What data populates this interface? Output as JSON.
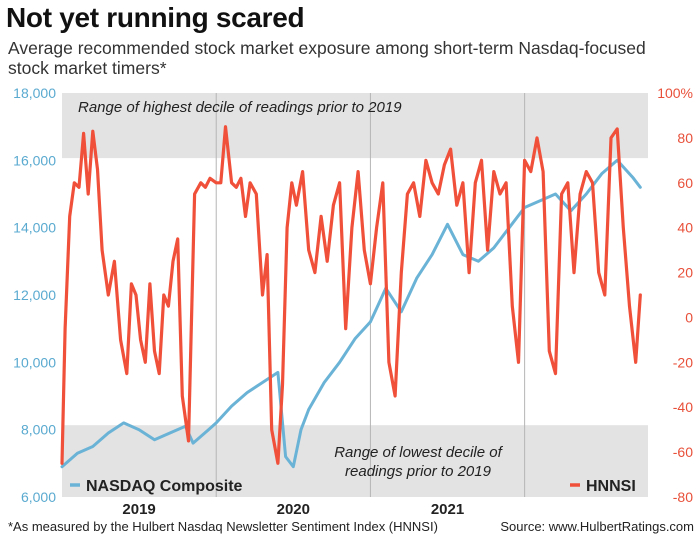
{
  "title": "Not yet running scared",
  "subtitle": "Average recommended stock market exposure among short-term Nasdaq-focused stock market timers*",
  "footnote": "*As measured by the Hulbert Nasdaq Newsletter Sentiment Index (HNNSI)",
  "source": "Source: www.HulbertRatings.com",
  "chart_data": {
    "type": "line",
    "x_range": [
      2018.0,
      2021.8
    ],
    "x_ticks": [
      {
        "label": "2019",
        "at": 2018.5
      },
      {
        "label": "2020",
        "at": 2019.5
      },
      {
        "label": "2021",
        "at": 2020.5
      }
    ],
    "year_dividers": [
      2019.0,
      2020.0,
      2021.0
    ],
    "left_axis": {
      "ylim": [
        6000,
        18000
      ],
      "ticks": [
        6000,
        8000,
        10000,
        12000,
        14000,
        16000,
        18000
      ],
      "tick_labels": [
        "6,000",
        "8,000",
        "10,000",
        "12,000",
        "14,000",
        "16,000",
        "18,000"
      ],
      "color": "#5aaad0"
    },
    "right_axis": {
      "ylim": [
        -80,
        100
      ],
      "ticks": [
        -80,
        -60,
        -40,
        -20,
        0,
        20,
        40,
        60,
        80,
        100
      ],
      "tick_labels": [
        "-80",
        "-60",
        "-40",
        "-20",
        "0",
        "20",
        "40",
        "60",
        "80",
        "100%"
      ],
      "color": "#e8503a"
    },
    "bands": [
      {
        "label": "Range of highest decile of readings prior to 2019",
        "axis": "right",
        "from": 71,
        "to": 100,
        "color": "#e3e3e3"
      },
      {
        "label_lines": [
          "Range of lowest decile of",
          "readings prior to 2019"
        ],
        "axis": "right",
        "from": -80,
        "to": -48,
        "color": "#e3e3e3"
      }
    ],
    "series": [
      {
        "name": "NASDAQ Composite",
        "axis": "left",
        "color": "#6bb3d6",
        "x": [
          2018.0,
          2018.1,
          2018.2,
          2018.3,
          2018.4,
          2018.5,
          2018.6,
          2018.7,
          2018.8,
          2018.85,
          2018.95,
          2019.0,
          2019.1,
          2019.2,
          2019.3,
          2019.4,
          2019.45,
          2019.5,
          2019.55,
          2019.6,
          2019.7,
          2019.8,
          2019.9,
          2020.0,
          2020.1,
          2020.2,
          2020.3,
          2020.4,
          2020.5,
          2020.6,
          2020.7,
          2020.8,
          2020.9,
          2021.0,
          2021.1,
          2021.2,
          2021.3,
          2021.4,
          2021.5,
          2021.6,
          2021.7,
          2021.75
        ],
        "values": [
          6900,
          7300,
          7500,
          7900,
          8200,
          8000,
          7700,
          7900,
          8100,
          7600,
          8000,
          8200,
          8700,
          9100,
          9400,
          9700,
          7200,
          6900,
          8000,
          8600,
          9400,
          10000,
          10700,
          11200,
          12200,
          11500,
          12500,
          13200,
          14100,
          13200,
          13000,
          13400,
          14000,
          14600,
          14800,
          15000,
          14500,
          15000,
          15600,
          16000,
          15500,
          15200
        ]
      },
      {
        "name": "HNNSI",
        "axis": "right",
        "color": "#f0503a",
        "x": [
          2018.0,
          2018.02,
          2018.05,
          2018.08,
          2018.11,
          2018.14,
          2018.17,
          2018.2,
          2018.23,
          2018.26,
          2018.3,
          2018.34,
          2018.38,
          2018.42,
          2018.45,
          2018.48,
          2018.51,
          2018.54,
          2018.57,
          2018.6,
          2018.63,
          2018.66,
          2018.69,
          2018.72,
          2018.75,
          2018.78,
          2018.82,
          2018.86,
          2018.9,
          2018.93,
          2018.96,
          2019.0,
          2019.03,
          2019.06,
          2019.1,
          2019.13,
          2019.16,
          2019.19,
          2019.22,
          2019.26,
          2019.3,
          2019.33,
          2019.36,
          2019.4,
          2019.43,
          2019.46,
          2019.49,
          2019.52,
          2019.56,
          2019.6,
          2019.64,
          2019.68,
          2019.72,
          2019.76,
          2019.8,
          2019.84,
          2019.88,
          2019.92,
          2019.96,
          2020.0,
          2020.04,
          2020.08,
          2020.12,
          2020.16,
          2020.2,
          2020.24,
          2020.28,
          2020.32,
          2020.36,
          2020.4,
          2020.44,
          2020.48,
          2020.52,
          2020.56,
          2020.6,
          2020.64,
          2020.68,
          2020.72,
          2020.76,
          2020.8,
          2020.84,
          2020.88,
          2020.92,
          2020.96,
          2021.0,
          2021.04,
          2021.08,
          2021.12,
          2021.16,
          2021.2,
          2021.24,
          2021.28,
          2021.32,
          2021.36,
          2021.4,
          2021.44,
          2021.48,
          2021.52,
          2021.56,
          2021.6,
          2021.64,
          2021.68,
          2021.72,
          2021.75
        ],
        "values": [
          -65,
          -5,
          45,
          60,
          58,
          82,
          55,
          83,
          66,
          30,
          10,
          25,
          -10,
          -25,
          15,
          10,
          -10,
          -20,
          15,
          -15,
          -25,
          10,
          5,
          25,
          35,
          -35,
          -55,
          55,
          60,
          58,
          62,
          60,
          60,
          85,
          60,
          58,
          62,
          45,
          60,
          55,
          10,
          28,
          -50,
          -65,
          -30,
          40,
          60,
          50,
          65,
          30,
          20,
          45,
          25,
          50,
          60,
          -5,
          40,
          65,
          30,
          15,
          40,
          60,
          -20,
          -35,
          20,
          55,
          60,
          45,
          70,
          60,
          55,
          68,
          75,
          50,
          60,
          20,
          60,
          70,
          30,
          65,
          55,
          60,
          5,
          -20,
          70,
          65,
          80,
          65,
          -15,
          -25,
          55,
          60,
          20,
          55,
          65,
          60,
          20,
          10,
          80,
          84,
          40,
          5,
          -20,
          10
        ]
      }
    ],
    "legend": [
      {
        "label": "NASDAQ Composite",
        "color": "#6bb3d6",
        "placement": "bottom-left"
      },
      {
        "label": "HNNSI",
        "color": "#f0503a",
        "placement": "bottom-right"
      }
    ]
  }
}
